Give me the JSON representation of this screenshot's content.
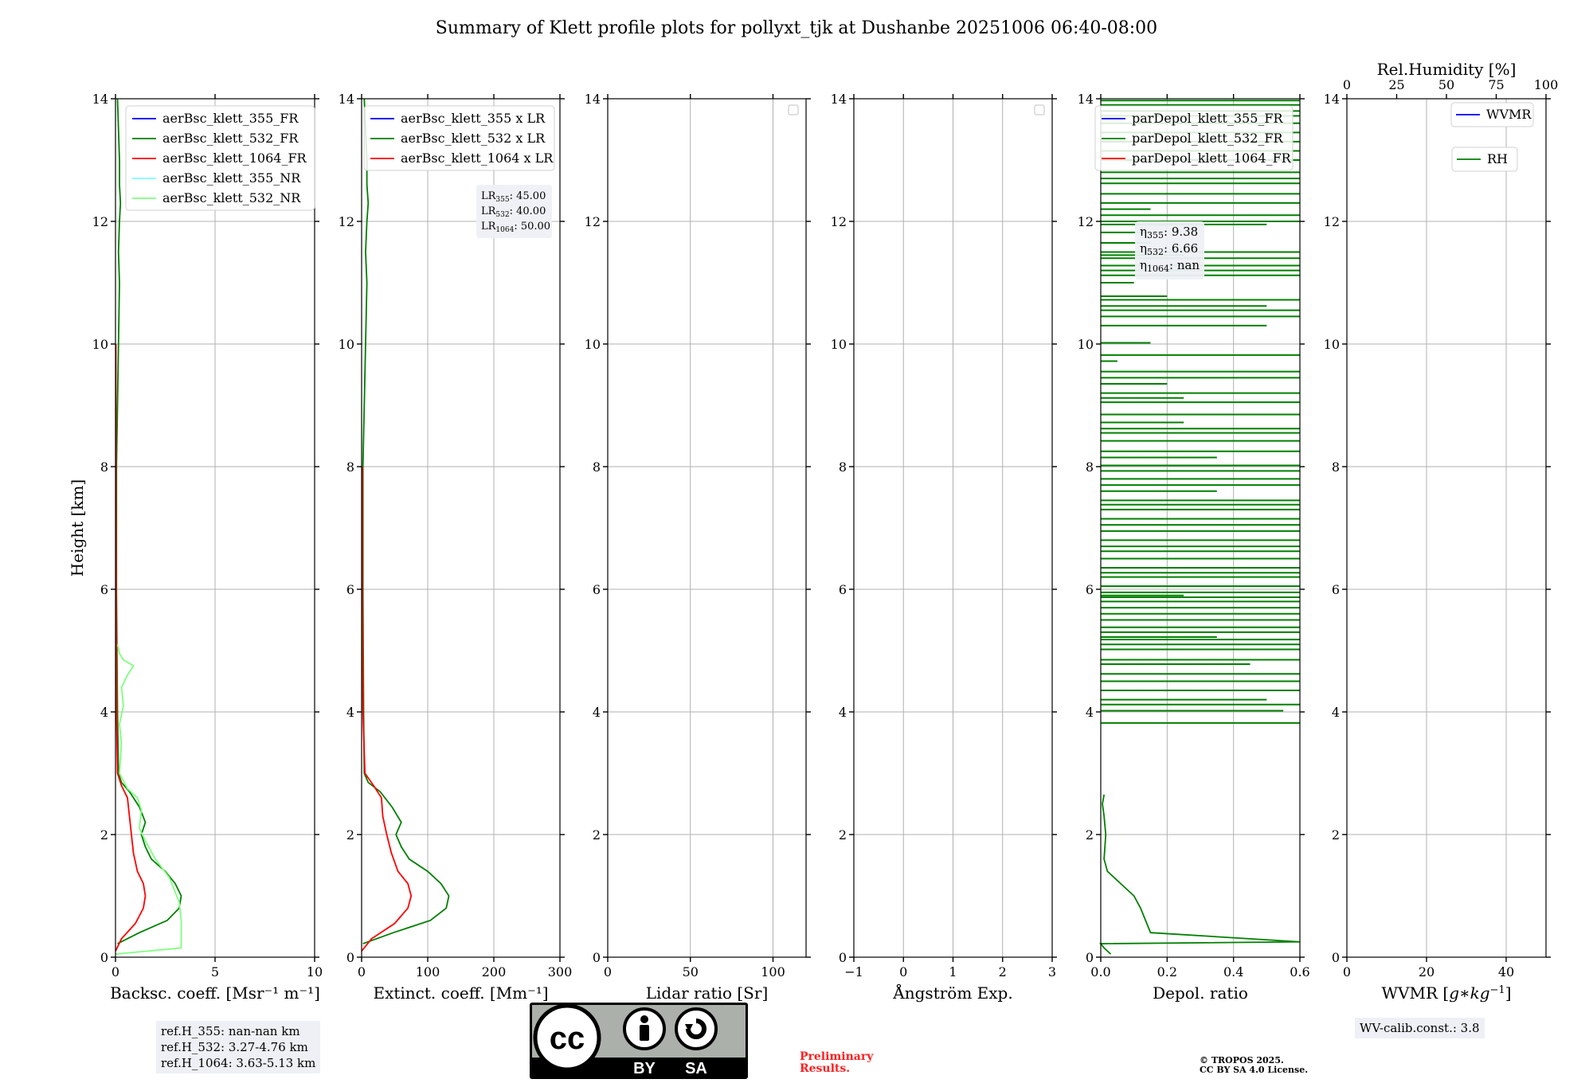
{
  "figure": {
    "title": "Summary of Klett profile plots for pollyxt_tjk at Dushanbe 20251006 06:40-08:00"
  },
  "refbox": {
    "lines": [
      "ref.H_355: nan-nan km",
      "ref.H_532: 3.27-4.76 km",
      "ref.H_1064: 3.63-5.13 km"
    ]
  },
  "preliminary": {
    "line1": "Preliminary",
    "line2": "Results."
  },
  "copyright": {
    "line1": "© TROPOS 2025.",
    "line2": "CC BY SA 4.0 License."
  },
  "wv_calib": {
    "text": "WV-calib.const.: 3.8"
  },
  "license_badge": {
    "cc": "cc",
    "by": "BY",
    "sa": "SA"
  },
  "colors": {
    "blue": "#0000ff",
    "green": "#008000",
    "red": "#ff0000",
    "cyan": "#7fffff",
    "lightgreen": "#80ff80",
    "grid": "#b0b0b0"
  },
  "chart_data": [
    {
      "type": "line",
      "id": "bsc",
      "title": "",
      "xlabel": "Backsc. coeff. [Msr⁻¹ m⁻¹]",
      "ylabel": "Height [km]",
      "xlim": [
        0,
        10
      ],
      "ylim": [
        0,
        14
      ],
      "xticks": [
        0,
        5,
        10
      ],
      "xticklabels": [
        "0",
        "5",
        "10"
      ],
      "yticks": [
        0,
        2,
        4,
        6,
        8,
        10,
        12,
        14
      ],
      "grid": true,
      "legend_position": "top-right",
      "series": [
        {
          "name": "aerBsc_klett_355_FR",
          "color": "#0000ff",
          "x": [],
          "y": []
        },
        {
          "name": "aerBsc_klett_532_FR",
          "color": "#008000",
          "x": [
            0.1,
            1.2,
            2.6,
            3.2,
            3.3,
            3.0,
            2.5,
            1.8,
            1.5,
            1.3,
            1.5,
            1.2,
            0.7,
            0.3,
            0.15,
            0.1,
            0.05,
            0.05,
            0.1,
            0.15,
            0.2,
            0.15,
            0.2,
            0.25,
            0.2,
            0.2,
            0.15,
            0.1
          ],
          "y": [
            0.22,
            0.4,
            0.6,
            0.8,
            1.0,
            1.2,
            1.4,
            1.6,
            1.8,
            2.0,
            2.2,
            2.45,
            2.7,
            2.85,
            3.0,
            4.0,
            6.0,
            8.0,
            9.0,
            10.0,
            11.0,
            11.5,
            12.0,
            12.3,
            12.6,
            13.0,
            13.5,
            14.0
          ]
        },
        {
          "name": "aerBsc_klett_1064_FR",
          "color": "#ff0000",
          "x": [
            0.0,
            0.3,
            1.0,
            1.4,
            1.5,
            1.4,
            1.1,
            0.9,
            0.8,
            0.7,
            0.6,
            0.3,
            0.1,
            0.05,
            0.03,
            0.02,
            0.02
          ],
          "y": [
            0.1,
            0.3,
            0.55,
            0.8,
            1.0,
            1.2,
            1.4,
            1.7,
            2.0,
            2.3,
            2.6,
            2.8,
            3.0,
            4.0,
            6.0,
            8.0,
            10.0
          ]
        },
        {
          "name": "aerBsc_klett_355_NR",
          "color": "#7fffff",
          "x": [],
          "y": []
        },
        {
          "name": "aerBsc_klett_532_NR",
          "color": "#80ff80",
          "x": [
            0.0,
            3.3,
            3.3,
            3.2,
            2.7,
            2.0,
            1.5,
            1.2,
            1.3,
            1.1,
            0.6,
            0.2,
            0.3,
            0.2,
            0.4,
            0.3,
            0.6,
            0.9,
            0.4,
            0.2,
            0.1
          ],
          "y": [
            0.05,
            0.15,
            0.6,
            0.9,
            1.3,
            1.6,
            1.9,
            2.1,
            2.4,
            2.6,
            2.75,
            3.0,
            3.5,
            3.8,
            4.1,
            4.4,
            4.6,
            4.75,
            4.85,
            4.95,
            5.1
          ]
        }
      ],
      "legend": [
        "aerBsc_klett_355_FR",
        "aerBsc_klett_532_FR",
        "aerBsc_klett_1064_FR",
        "aerBsc_klett_355_NR",
        "aerBsc_klett_532_NR"
      ]
    },
    {
      "type": "line",
      "id": "ext",
      "xlabel": "Extinct. coeff. [Mm⁻¹]",
      "xlim": [
        0,
        300
      ],
      "ylim": [
        0,
        14
      ],
      "xticks": [
        0,
        100,
        200,
        300
      ],
      "xticklabels": [
        "0",
        "100",
        "200",
        "300"
      ],
      "yticks": [
        0,
        2,
        4,
        6,
        8,
        10,
        12,
        14
      ],
      "grid": true,
      "legend_position": "top-right",
      "annotation": {
        "lines": [
          {
            "base": "LR",
            "sub": "355",
            "val": ": 45.00"
          },
          {
            "base": "LR",
            "sub": "532",
            "val": ": 40.00"
          },
          {
            "base": "LR",
            "sub": "1064",
            "val": ": 50.00"
          }
        ]
      },
      "series": [
        {
          "name": "aerBsc_klett_355 x LR",
          "color": "#0000ff",
          "x": [],
          "y": []
        },
        {
          "name": "aerBsc_klett_532 x LR",
          "color": "#008000",
          "x": [
            2,
            48,
            104,
            128,
            132,
            120,
            100,
            72,
            60,
            52,
            60,
            46,
            28,
            10,
            4,
            3,
            2,
            2,
            4,
            6,
            8,
            6,
            8,
            10,
            8,
            8,
            6,
            4
          ],
          "y": [
            0.22,
            0.4,
            0.6,
            0.8,
            1.0,
            1.2,
            1.4,
            1.6,
            1.8,
            2.0,
            2.2,
            2.45,
            2.7,
            2.85,
            3.0,
            4.0,
            6.0,
            8.0,
            9.0,
            10.0,
            11.0,
            11.5,
            12.0,
            12.3,
            12.6,
            13.0,
            13.5,
            14.0
          ]
        },
        {
          "name": "aerBsc_klett_1064 x LR",
          "color": "#ff0000",
          "x": [
            0,
            15,
            50,
            70,
            75,
            70,
            55,
            45,
            38,
            32,
            30,
            18,
            5,
            2,
            1,
            1
          ],
          "y": [
            0.1,
            0.3,
            0.55,
            0.8,
            1.0,
            1.2,
            1.4,
            1.7,
            2.0,
            2.3,
            2.6,
            2.8,
            3.0,
            4.0,
            6.0,
            8.0
          ]
        }
      ],
      "legend": [
        "aerBsc_klett_355 x LR",
        "aerBsc_klett_532 x LR",
        "aerBsc_klett_1064 x LR"
      ]
    },
    {
      "type": "line",
      "id": "lr",
      "xlabel": "Lidar ratio [Sr]",
      "xlim": [
        0,
        120
      ],
      "ylim": [
        0,
        14
      ],
      "xticks": [
        0,
        50,
        100
      ],
      "xticklabels": [
        "0",
        "50",
        "100"
      ],
      "yticks": [
        0,
        2,
        4,
        6,
        8,
        10,
        12,
        14
      ],
      "grid": true,
      "legend_position": "top-right",
      "empty_legend": true,
      "series": []
    },
    {
      "type": "line",
      "id": "ang",
      "xlabel": "Ångström Exp.",
      "xlim": [
        -1,
        3
      ],
      "ylim": [
        0,
        14
      ],
      "xticks": [
        -1,
        0,
        1,
        2,
        3
      ],
      "xticklabels": [
        "−1",
        "0",
        "1",
        "2",
        "3"
      ],
      "yticks": [
        0,
        2,
        4,
        6,
        8,
        10,
        12,
        14
      ],
      "grid": true,
      "legend_position": "top-right",
      "empty_legend": true,
      "series": []
    },
    {
      "type": "line",
      "id": "depol",
      "xlabel": "Depol. ratio",
      "xlim": [
        0,
        0.6
      ],
      "ylim": [
        0,
        14
      ],
      "xticks": [
        0,
        0.2,
        0.4,
        0.6
      ],
      "xticklabels": [
        "0.0",
        "0.2",
        "0.4",
        "0.6"
      ],
      "yticks": [
        0,
        2,
        4,
        6,
        8,
        10,
        12,
        14
      ],
      "grid": true,
      "legend_position": "top-left",
      "annotation": {
        "lines": [
          {
            "base": "η",
            "sub": "355",
            "val": ": 9.38"
          },
          {
            "base": "η",
            "sub": "532",
            "val": ": 6.66"
          },
          {
            "base": "η",
            "sub": "1064",
            "val": ": nan"
          }
        ]
      },
      "series": [
        {
          "name": "parDepol_klett_355_FR",
          "color": "#0000ff",
          "x": [],
          "y": []
        },
        {
          "name": "parDepol_klett_532_FR",
          "color": "#008000",
          "x": [
            0.03,
            0.01,
            0.0,
            0.6,
            0.15,
            0.12,
            0.1,
            0.06,
            0.02,
            0.01,
            0.015,
            0.01,
            0.005,
            0.01
          ],
          "y": [
            0.05,
            0.15,
            0.22,
            0.25,
            0.4,
            0.8,
            1.0,
            1.2,
            1.4,
            1.6,
            2.0,
            2.3,
            2.5,
            2.65
          ]
        },
        {
          "name": "parDepol_klett_1064_FR",
          "color": "#ff0000",
          "x": [],
          "y": []
        }
      ],
      "depol_spikes": {
        "color": "#008000",
        "heights": [
          3.82,
          4.02,
          4.12,
          4.2,
          4.35,
          4.5,
          4.62,
          4.78,
          4.85,
          5.02,
          5.1,
          5.18,
          5.22,
          5.3,
          5.38,
          5.5,
          5.6,
          5.7,
          5.8,
          5.87,
          5.9,
          5.95,
          6.05,
          6.2,
          6.27,
          6.35,
          6.5,
          6.62,
          6.7,
          6.8,
          6.95,
          7.05,
          7.15,
          7.3,
          7.38,
          7.45,
          7.6,
          7.7,
          7.8,
          7.93,
          8.02,
          8.15,
          8.25,
          8.42,
          8.55,
          8.62,
          8.72,
          8.85,
          9.05,
          9.12,
          9.2,
          9.35,
          9.45,
          9.55,
          9.72,
          9.82,
          10.02,
          10.3,
          10.45,
          10.55,
          10.62,
          10.72,
          10.78,
          11.0,
          11.12,
          11.2,
          11.28,
          11.4,
          11.45,
          11.5,
          11.65,
          11.82,
          11.95,
          12.0,
          12.1,
          12.2,
          12.3,
          12.45,
          12.62,
          12.7,
          12.8,
          13.0,
          13.15,
          13.3,
          13.45,
          13.6,
          13.72,
          13.8,
          13.9,
          13.97
        ],
        "values": [
          0.6,
          0.55,
          0.6,
          0.5,
          0.6,
          0.6,
          0.6,
          0.45,
          0.6,
          0.6,
          0.6,
          0.6,
          0.35,
          0.6,
          0.6,
          0.6,
          0.6,
          0.6,
          0.6,
          0.6,
          0.25,
          0.6,
          0.6,
          0.6,
          0.6,
          0.6,
          0.6,
          0.6,
          0.6,
          0.6,
          0.6,
          0.6,
          0.6,
          0.6,
          0.6,
          0.6,
          0.35,
          0.6,
          0.6,
          0.6,
          0.6,
          0.35,
          0.6,
          0.6,
          0.6,
          0.6,
          0.25,
          0.6,
          0.6,
          0.25,
          0.6,
          0.2,
          0.6,
          0.6,
          0.05,
          0.6,
          0.15,
          0.5,
          0.6,
          0.6,
          0.5,
          0.6,
          0.2,
          0.1,
          0.6,
          0.6,
          0.6,
          0.6,
          0.25,
          0.6,
          0.15,
          0.15,
          0.5,
          0.6,
          0.6,
          0.15,
          0.6,
          0.6,
          0.6,
          0.6,
          0.6,
          0.6,
          0.6,
          0.6,
          0.6,
          0.6,
          0.6,
          0.6,
          0.6,
          0.6
        ]
      },
      "legend": [
        "parDepol_klett_355_FR",
        "parDepol_klett_532_FR",
        "parDepol_klett_1064_FR"
      ]
    },
    {
      "type": "line",
      "id": "wv",
      "xlabel": "WVMR [g*kg⁻¹]",
      "xlabel_parts": {
        "pre": "WVMR [",
        "g": "g",
        "star": "∗",
        "kg": "kg",
        "sup": "−1",
        "post": "]"
      },
      "top_xlabel": "Rel.Humidity [%]",
      "xlim": [
        0,
        50
      ],
      "ylim": [
        0,
        14
      ],
      "xticks": [
        0,
        20,
        40
      ],
      "xticklabels": [
        "0",
        "20",
        "40"
      ],
      "top_xlim": [
        0,
        100
      ],
      "top_xticks": [
        0,
        25,
        50,
        75,
        100
      ],
      "top_xticklabels": [
        "0",
        "25",
        "50",
        "75",
        "100"
      ],
      "yticks": [
        0,
        2,
        4,
        6,
        8,
        10,
        12,
        14
      ],
      "grid": true,
      "legend_position": "top-right",
      "series": [
        {
          "name": "WVMR",
          "color": "#0000ff",
          "x": [],
          "y": []
        },
        {
          "name": "RH",
          "color": "#008000",
          "x": [],
          "y": []
        }
      ],
      "legend": [
        "WVMR",
        "RH"
      ]
    }
  ]
}
